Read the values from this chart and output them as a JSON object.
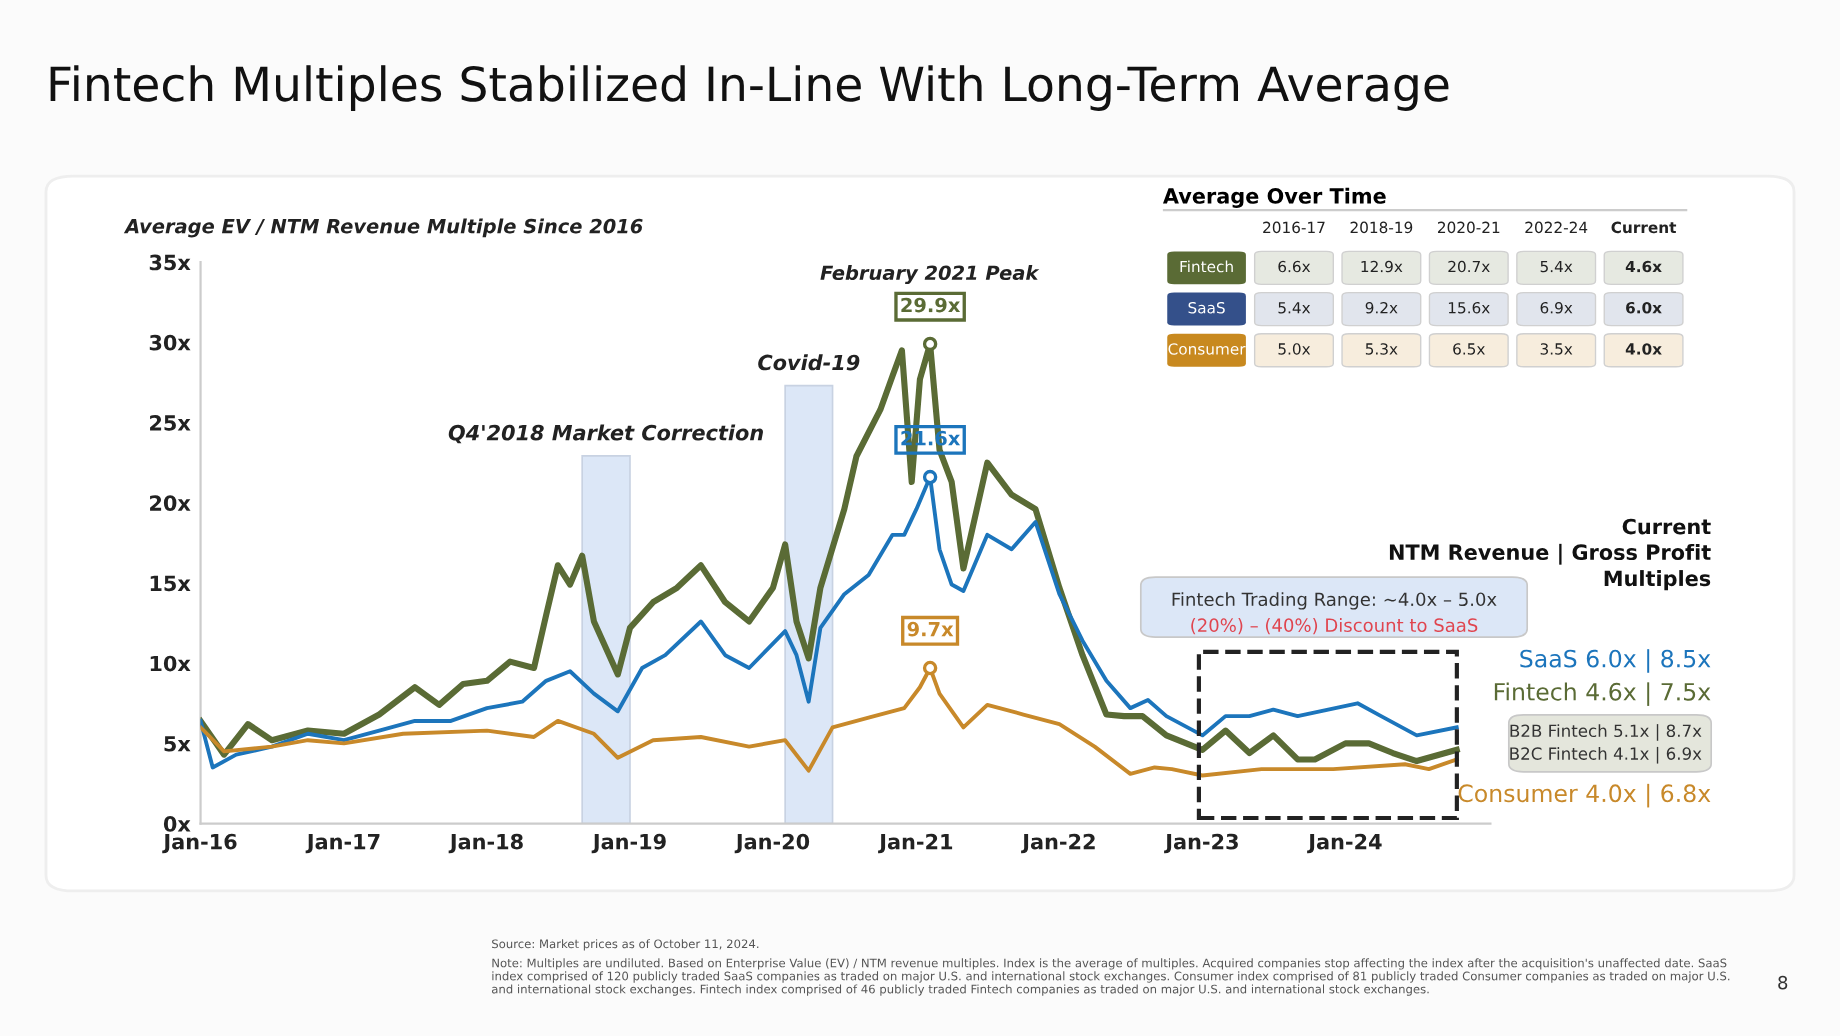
{
  "chart_data": [
    {
      "type": "line",
      "title": "Fintech Multiples Stabilized In-Line With Long-Term Average",
      "subtitle": "Average EV / NTM Revenue Multiple Since 2016",
      "xlim": [
        "2016-01-01",
        "2025-01-05"
      ],
      "xticks": [
        {
          "value": "2016-01-01",
          "label": "Jan-16"
        },
        {
          "value": "2017-01-01",
          "label": "Jan-17"
        },
        {
          "value": "2018-01-01",
          "label": "Jan-18"
        },
        {
          "value": "2019-01-01",
          "label": "Jan-19"
        },
        {
          "value": "2020-01-01",
          "label": "Jan-20"
        },
        {
          "value": "2021-01-01",
          "label": "Jan-21"
        },
        {
          "value": "2022-01-01",
          "label": "Jan-22"
        },
        {
          "value": "2023-01-01",
          "label": "Jan-23"
        },
        {
          "value": "2024-01-01",
          "label": "Jan-24"
        }
      ],
      "ylim": [
        0,
        35
      ],
      "yticks": [
        {
          "value": 0,
          "label": "0x"
        },
        {
          "value": 5,
          "label": "5x"
        },
        {
          "value": 10,
          "label": "10x"
        },
        {
          "value": 15,
          "label": "15x"
        },
        {
          "value": 20,
          "label": "20x"
        },
        {
          "value": 25,
          "label": "25x"
        },
        {
          "value": 30,
          "label": "30x"
        },
        {
          "value": 35,
          "label": "35x"
        }
      ],
      "grid": false,
      "marker": "none",
      "line_style": "solid",
      "series": [
        {
          "color": "#5a6b35",
          "x": [
            "2016-01-01",
            "2016-03-01",
            "2016-05-01",
            "2016-07-01",
            "2016-10-01",
            "2017-01-01",
            "2017-04-01",
            "2017-07-01",
            "2017-09-01",
            "2017-11-01",
            "2018-01-01",
            "2018-03-01",
            "2018-05-01",
            "2018-06-01",
            "2018-07-01",
            "2018-08-01",
            "2018-09-01",
            "2018-10-01",
            "2018-12-01",
            "2019-01-01",
            "2019-03-01",
            "2019-05-01",
            "2019-07-01",
            "2019-09-01",
            "2019-11-01",
            "2020-01-01",
            "2020-02-01",
            "2020-03-01",
            "2020-04-01",
            "2020-05-01",
            "2020-07-01",
            "2020-08-01",
            "2020-10-01",
            "2020-11-01",
            "2020-11-25",
            "2020-12-20",
            "2021-01-10",
            "2021-02-05",
            "2021-03-01",
            "2021-04-01",
            "2021-05-01",
            "2021-07-01",
            "2021-09-01",
            "2021-11-01",
            "2022-01-01",
            "2022-03-01",
            "2022-05-01",
            "2022-06-15",
            "2022-08-01",
            "2022-10-01",
            "2023-01-01",
            "2023-03-01",
            "2023-05-01",
            "2023-07-01",
            "2023-09-01",
            "2023-10-15",
            "2024-01-01",
            "2024-03-01",
            "2024-05-01",
            "2024-07-01",
            "2024-10-11"
          ],
          "values": [
            6.4,
            4.3,
            6.2,
            5.2,
            5.8,
            5.6,
            6.8,
            8.5,
            7.4,
            8.7,
            8.9,
            10.1,
            9.7,
            13.0,
            16.1,
            14.9,
            16.7,
            12.6,
            9.3,
            12.2,
            13.8,
            14.7,
            16.1,
            13.8,
            12.6,
            14.7,
            17.4,
            12.6,
            10.3,
            14.7,
            19.6,
            22.9,
            25.8,
            27.9,
            29.5,
            21.3,
            27.7,
            29.9,
            23.3,
            21.3,
            15.9,
            22.5,
            20.5,
            19.6,
            14.7,
            10.5,
            6.8,
            6.7,
            6.7,
            5.5,
            4.6,
            5.8,
            4.4,
            5.5,
            4.0,
            4.0,
            5.0,
            5.0,
            4.4,
            3.9,
            4.6
          ]
        },
        {
          "color": "#1c75bc",
          "x": [
            "2016-01-01",
            "2016-02-01",
            "2016-04-01",
            "2016-07-01",
            "2016-10-01",
            "2017-01-01",
            "2017-04-01",
            "2017-07-01",
            "2017-10-01",
            "2018-01-01",
            "2018-04-01",
            "2018-06-01",
            "2018-08-01",
            "2018-10-01",
            "2018-12-01",
            "2019-02-01",
            "2019-04-01",
            "2019-07-01",
            "2019-09-01",
            "2019-11-01",
            "2020-02-01",
            "2020-03-01",
            "2020-04-01",
            "2020-05-01",
            "2020-07-01",
            "2020-09-01",
            "2020-11-01",
            "2020-12-01",
            "2021-01-01",
            "2021-02-05",
            "2021-03-01",
            "2021-04-01",
            "2021-05-01",
            "2021-07-01",
            "2021-09-01",
            "2021-11-01",
            "2022-01-01",
            "2022-03-01",
            "2022-05-01",
            "2022-07-01",
            "2022-08-15",
            "2022-10-01",
            "2023-01-01",
            "2023-03-01",
            "2023-05-01",
            "2023-07-01",
            "2023-09-01",
            "2024-02-01",
            "2024-04-01",
            "2024-07-01",
            "2024-10-11"
          ],
          "values": [
            6.4,
            3.5,
            4.3,
            4.8,
            5.6,
            5.2,
            5.8,
            6.4,
            6.4,
            7.2,
            7.6,
            8.9,
            9.5,
            8.1,
            7.0,
            9.7,
            10.5,
            12.6,
            10.5,
            9.7,
            12.0,
            10.5,
            7.6,
            12.2,
            14.3,
            15.5,
            18.0,
            18.0,
            19.6,
            21.6,
            17.1,
            14.9,
            14.5,
            18.0,
            17.1,
            18.8,
            14.3,
            11.4,
            8.9,
            7.2,
            7.7,
            6.7,
            5.5,
            6.7,
            6.7,
            7.1,
            6.7,
            7.5,
            6.7,
            5.5,
            6.0
          ]
        },
        {
          "color": "#c8892a",
          "x": [
            "2016-01-01",
            "2016-03-01",
            "2016-07-01",
            "2016-10-01",
            "2017-01-01",
            "2017-06-01",
            "2018-01-01",
            "2018-05-01",
            "2018-07-01",
            "2018-10-01",
            "2018-12-01",
            "2019-03-01",
            "2019-07-01",
            "2019-11-01",
            "2020-02-01",
            "2020-04-01",
            "2020-06-01",
            "2020-09-01",
            "2020-12-01",
            "2021-01-10",
            "2021-02-05",
            "2021-03-01",
            "2021-05-01",
            "2021-07-01",
            "2021-10-01",
            "2022-01-01",
            "2022-04-01",
            "2022-07-01",
            "2022-09-01",
            "2022-10-15",
            "2023-01-01",
            "2023-06-01",
            "2023-12-01",
            "2024-06-01",
            "2024-08-01",
            "2024-10-11"
          ],
          "values": [
            6.0,
            4.5,
            4.8,
            5.2,
            5.0,
            5.6,
            5.8,
            5.4,
            6.4,
            5.6,
            4.1,
            5.2,
            5.4,
            4.8,
            5.2,
            3.3,
            6.0,
            6.6,
            7.2,
            8.5,
            9.7,
            8.1,
            6.0,
            7.4,
            6.8,
            6.2,
            4.8,
            3.1,
            3.5,
            3.4,
            3.0,
            3.4,
            3.4,
            3.7,
            3.4,
            4.0
          ]
        }
      ],
      "bands": [
        {
          "axis": "x",
          "from": "2018-09-01",
          "to": "2019-01-01",
          "label": "Q4'2018 Market Correction",
          "color": "#dce7f7"
        },
        {
          "axis": "x",
          "from": "2020-02-01",
          "to": "2020-06-01",
          "label": "Covid-19",
          "color": "#dce7f7"
        }
      ],
      "annotations": [
        "February 2021 Peak",
        {
          "text": "29.9x",
          "x": "2021-02-05",
          "y": 29.9
        },
        {
          "text": "21.6x",
          "x": "2021-02-05",
          "y": 21.6
        },
        {
          "text": "9.7x",
          "x": "2021-02-05",
          "y": 9.7
        },
        "Fintech Trading Range: ~4.0x – 5.0x",
        "(20%) – (40%) Discount to SaaS",
        "Current",
        "NTM Revenue | Gross Profit",
        "Multiples",
        "SaaS 6.0x | 8.5x",
        "Fintech 4.6x | 7.5x",
        "B2B Fintech 5.1x | 8.7x",
        "B2C Fintech 4.1x | 6.9x",
        "Consumer 4.0x | 6.8x",
        "Source: Market prices as of October 11, 2024.",
        "Note: Multiples are undiluted. Based on Enterprise Value (EV) / NTM revenue multiples. Index is the average of multiples. Acquired companies stop affecting the index after the acquisition's unaffected date. SaaS index comprised of 120 publicly traded SaaS companies as traded on major U.S. and international stock exchanges. Consumer index comprised of 81 publicly traded Consumer companies as traded on major U.S. and international stock exchanges. Fintech index comprised of 46 publicly traded Fintech companies as traded on major U.S. and international stock exchanges.",
        "8"
      ]
    },
    {
      "type": "other",
      "title": "Average Over Time",
      "categories": [
        "2016-17",
        "2018-19",
        "2020-21",
        "2022-24",
        "Current"
      ],
      "y_categories": [
        "Fintech",
        "SaaS",
        "Consumer"
      ],
      "colors": [
        "#5a6b35",
        "#34508a",
        "#c8891f"
      ],
      "cell_labels": [
        [
          "6.6x",
          "12.9x",
          "20.7x",
          "5.4x",
          "4.6x"
        ],
        [
          "5.4x",
          "9.2x",
          "15.6x",
          "6.9x",
          "6.0x"
        ],
        [
          "5.0x",
          "5.3x",
          "6.5x",
          "3.5x",
          "4.0x"
        ]
      ]
    }
  ]
}
